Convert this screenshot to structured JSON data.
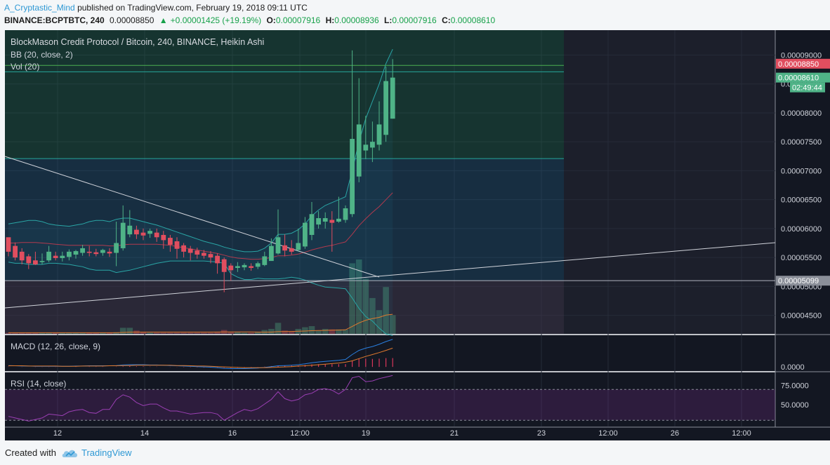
{
  "header": {
    "user": "A_Cryptastic_Mind",
    "published": "published on TradingView.com, February 19, 2018 09:11 UTC",
    "symbol": "BINANCE:BCPTBTC, 240",
    "price": "0.00008850",
    "change": "+0.00001425 (+19.19%)",
    "o_label": "O:",
    "o_val": "0.00007916",
    "h_label": "H:",
    "h_val": "0.00008936",
    "l_label": "L:",
    "l_val": "0.00007916",
    "c_label": "C:",
    "c_val": "0.00008610"
  },
  "chart_title": "BlockMason Credit Protocol / Bitcoin, 240, BINANCE, Heikin Ashi",
  "bb_label": "BB (20, close, 2)",
  "vol_label": "Vol (20)",
  "macd_label": "MACD (12, 26, close, 9)",
  "rsi_label": "RSI (14, close)",
  "footer": {
    "created": "Created with",
    "brand": "TradingView"
  },
  "colors": {
    "up": "#4fb387",
    "down": "#e04e5f",
    "bg": "#131722",
    "rsi_line": "#9b3fb4"
  },
  "chart_data": {
    "type": "candlestick",
    "price_axis": {
      "ticks": [
        "0.00009000",
        "0.00008500",
        "0.00008000",
        "0.00007500",
        "0.00007000",
        "0.00006500",
        "0.00006000",
        "0.00005500",
        "0.00005000",
        "0.00004500"
      ],
      "range": [
        4.18e-05,
        9.43e-05
      ]
    },
    "price_labels": [
      {
        "value": 8.85e-05,
        "text": "0.00008850",
        "color": "#e04e5f"
      },
      {
        "value": 8.61e-05,
        "text": "0.00008610",
        "color": "#4fb387"
      },
      {
        "value": 5.099e-05,
        "text": "0.00005099",
        "color": "#8b8f99"
      }
    ],
    "countdown": "02:49:44",
    "x_axis_ticks": [
      "12",
      "14",
      "16",
      "12:00",
      "19",
      "21",
      "23",
      "12:00",
      "26",
      "12:00"
    ],
    "candles": [
      [
        5.85e-05,
        5.75e-05,
        5.6e-05,
        5.52e-05
      ],
      [
        5.7e-05,
        5.76e-05,
        5.5e-05,
        5.45e-05
      ],
      [
        5.6e-05,
        5.66e-05,
        5.45e-05,
        5.38e-05
      ],
      [
        5.52e-05,
        5.56e-05,
        5.4e-05,
        5.3e-05
      ],
      [
        5.45e-05,
        5.6e-05,
        5.38e-05,
        5.37e-05
      ],
      [
        5.42e-05,
        5.57e-05,
        5.44e-05,
        5.38e-05
      ],
      [
        5.45e-05,
        5.7e-05,
        5.6e-05,
        5.42e-05
      ],
      [
        5.53e-05,
        5.6e-05,
        5.49e-05,
        5.45e-05
      ],
      [
        5.49e-05,
        5.6e-05,
        5.53e-05,
        5.43e-05
      ],
      [
        5.51e-05,
        5.64e-05,
        5.6e-05,
        5.45e-05
      ],
      [
        5.55e-05,
        5.63e-05,
        5.61e-05,
        5.48e-05
      ],
      [
        5.58e-05,
        5.72e-05,
        5.66e-05,
        5.53e-05
      ],
      [
        5.6e-05,
        5.7e-05,
        5.58e-05,
        5.52e-05
      ],
      [
        5.59e-05,
        5.65e-05,
        5.56e-05,
        5.52e-05
      ],
      [
        5.58e-05,
        5.65e-05,
        5.63e-05,
        5.53e-05
      ],
      [
        5.6e-05,
        5.66e-05,
        5.57e-05,
        5.51e-05
      ],
      [
        5.58e-05,
        6.12e-05,
        5.75e-05,
        5.35e-05
      ],
      [
        5.66e-05,
        6.4e-05,
        6.1e-05,
        5.62e-05
      ],
      [
        5.9e-05,
        6.32e-05,
        6.05e-05,
        5.85e-05
      ],
      [
        5.98e-05,
        6.05e-05,
        5.9e-05,
        5.82e-05
      ],
      [
        5.93e-05,
        6e-05,
        5.88e-05,
        5.8e-05
      ],
      [
        5.91e-05,
        6e-05,
        5.96e-05,
        5.84e-05
      ],
      [
        5.93e-05,
        6e-05,
        5.85e-05,
        5.77e-05
      ],
      [
        5.89e-05,
        5.96e-05,
        5.8e-05,
        5.65e-05
      ],
      [
        5.84e-05,
        5.89e-05,
        5.72e-05,
        5.6e-05
      ],
      [
        5.78e-05,
        5.85e-05,
        5.65e-05,
        5.48e-05
      ],
      [
        5.71e-05,
        5.75e-05,
        5.6e-05,
        5.5e-05
      ],
      [
        5.65e-05,
        5.7e-05,
        5.58e-05,
        5.45e-05
      ],
      [
        5.62e-05,
        5.67e-05,
        5.55e-05,
        5.48e-05
      ],
      [
        5.58e-05,
        5.63e-05,
        5.53e-05,
        5.48e-05
      ],
      [
        5.56e-05,
        5.61e-05,
        5.5e-05,
        5.4e-05
      ],
      [
        5.53e-05,
        5.57e-05,
        5.4e-05,
        5.22e-05
      ],
      [
        5.47e-05,
        5.5e-05,
        5.25e-05,
        4.9e-05
      ],
      [
        5.36e-05,
        5.4e-05,
        5.28e-05,
        5.1e-05
      ],
      [
        5.32e-05,
        5.42e-05,
        5.35e-05,
        5.25e-05
      ],
      [
        5.33e-05,
        5.4e-05,
        5.37e-05,
        5.28e-05
      ],
      [
        5.35e-05,
        5.4e-05,
        5.32e-05,
        5.27e-05
      ],
      [
        5.34e-05,
        5.43e-05,
        5.4e-05,
        5.3e-05
      ],
      [
        5.37e-05,
        5.6e-05,
        5.52e-05,
        5.35e-05
      ],
      [
        5.44e-05,
        5.83e-05,
        5.7e-05,
        5.45e-05
      ],
      [
        5.57e-05,
        6.33e-05,
        5.85e-05,
        5.55e-05
      ],
      [
        5.71e-05,
        5.9e-05,
        5.62e-05,
        5.52e-05
      ],
      [
        5.66e-05,
        5.8e-05,
        5.6e-05,
        5.55e-05
      ],
      [
        5.63e-05,
        6e-05,
        5.75e-05,
        5.6e-05
      ],
      [
        5.69e-05,
        6.2e-05,
        6.1e-05,
        5.65e-05
      ],
      [
        5.89e-05,
        6.46e-05,
        6.25e-05,
        5.8e-05
      ],
      [
        6.07e-05,
        6.3e-05,
        6.18e-05,
        6e-05
      ],
      [
        6.12e-05,
        6.28e-05,
        6.18e-05,
        6e-05
      ],
      [
        6.15e-05,
        6.3e-05,
        6.1e-05,
        5.6e-05
      ],
      [
        6.12e-05,
        6.55e-05,
        6.17e-05,
        6.1e-05
      ],
      [
        6.15e-05,
        6.4e-05,
        6.35e-05,
        6.1e-05
      ],
      [
        6.25e-05,
        9.08e-05,
        7.55e-05,
        6.2e-05
      ],
      [
        6.9e-05,
        8.6e-05,
        7.8e-05,
        6.8e-05
      ],
      [
        7.35e-05,
        7.95e-05,
        7.45e-05,
        7.2e-05
      ],
      [
        7.4e-05,
        7.85e-05,
        7.5e-05,
        7.15e-05
      ],
      [
        7.45e-05,
        8.2e-05,
        7.8e-05,
        7.35e-05
      ],
      [
        7.62e-05,
        8.8e-05,
        8.55e-05,
        7.5e-05
      ],
      [
        7.9e-05,
        8.93e-05,
        8.61e-05,
        7.9e-05
      ]
    ],
    "bb_upper": [
      6.08e-05,
      6.1e-05,
      6.12e-05,
      6.14e-05,
      6.14e-05,
      6.12e-05,
      6.08e-05,
      6.06e-05,
      6.05e-05,
      6.04e-05,
      6.06e-05,
      6.08e-05,
      6.12e-05,
      6.14e-05,
      6.14e-05,
      6.12e-05,
      6.16e-05,
      6.18e-05,
      6.18e-05,
      6.15e-05,
      6.12e-05,
      6.09e-05,
      6.06e-05,
      6.02e-05,
      5.98e-05,
      5.94e-05,
      5.9e-05,
      5.86e-05,
      5.82e-05,
      5.78e-05,
      5.75e-05,
      5.72e-05,
      5.68e-05,
      5.65e-05,
      5.62e-05,
      5.6e-05,
      5.6e-05,
      5.61e-05,
      5.66e-05,
      5.75e-05,
      5.9e-05,
      5.9e-05,
      5.92e-05,
      5.98e-05,
      6.08e-05,
      6.22e-05,
      6.32e-05,
      6.4e-05,
      6.45e-05,
      6.5e-05,
      6.55e-05,
      7e-05,
      7.5e-05,
      7.9e-05,
      8.2e-05,
      8.5e-05,
      8.85e-05,
      9.1e-05
    ],
    "bb_basis": [
      5.75e-05,
      5.75e-05,
      5.76e-05,
      5.76e-05,
      5.76e-05,
      5.75e-05,
      5.74e-05,
      5.73e-05,
      5.72e-05,
      5.71e-05,
      5.71e-05,
      5.71e-05,
      5.71e-05,
      5.71e-05,
      5.71e-05,
      5.7e-05,
      5.7e-05,
      5.72e-05,
      5.73e-05,
      5.73e-05,
      5.73e-05,
      5.73e-05,
      5.73e-05,
      5.72e-05,
      5.71e-05,
      5.69e-05,
      5.67e-05,
      5.65e-05,
      5.63e-05,
      5.61e-05,
      5.59e-05,
      5.57e-05,
      5.54e-05,
      5.51e-05,
      5.49e-05,
      5.48e-05,
      5.47e-05,
      5.47e-05,
      5.48e-05,
      5.5e-05,
      5.53e-05,
      5.53e-05,
      5.54e-05,
      5.56e-05,
      5.59e-05,
      5.63e-05,
      5.66e-05,
      5.69e-05,
      5.71e-05,
      5.74e-05,
      5.77e-05,
      5.9e-05,
      6.05e-05,
      6.17e-05,
      6.28e-05,
      6.38e-05,
      6.5e-05,
      6.62e-05
    ],
    "bb_lower": [
      5.42e-05,
      5.4e-05,
      5.4e-05,
      5.38e-05,
      5.38e-05,
      5.38e-05,
      5.4e-05,
      5.4e-05,
      5.39e-05,
      5.38e-05,
      5.36e-05,
      5.34e-05,
      5.3e-05,
      5.28e-05,
      5.28e-05,
      5.28e-05,
      5.24e-05,
      5.26e-05,
      5.28e-05,
      5.31e-05,
      5.34e-05,
      5.37e-05,
      5.4e-05,
      5.42e-05,
      5.44e-05,
      5.44e-05,
      5.44e-05,
      5.44e-05,
      5.44e-05,
      5.44e-05,
      5.43e-05,
      5.42e-05,
      5.4e-05,
      5.22e-05,
      5.16e-05,
      5.12e-05,
      5.12e-05,
      5.14e-05,
      5.13e-05,
      5.13e-05,
      5.13e-05,
      5.14e-05,
      5.16e-05,
      5.14e-05,
      5.11e-05,
      5.06e-05,
      5.02e-05,
      4.99e-05,
      4.98e-05,
      4.97e-05,
      4.96e-05,
      4.8e-05,
      4.62e-05,
      4.48e-05,
      4.4e-05,
      4.28e-05,
      4.18e-05,
      4.15e-05
    ],
    "volume": [
      2,
      2,
      2,
      2,
      2,
      2,
      2,
      2,
      2,
      2,
      2,
      2,
      2,
      2,
      2,
      2,
      3,
      11,
      11,
      6,
      3,
      2,
      2,
      2,
      2,
      2,
      2,
      2,
      2,
      2,
      2,
      3,
      7,
      3,
      3,
      2,
      2,
      4,
      7,
      9,
      20,
      6,
      4,
      9,
      12,
      14,
      6,
      9,
      8,
      8,
      8,
      128,
      135,
      100,
      65,
      43,
      85,
      34
    ],
    "vol_scale_max": 140,
    "macd": [
      5e-07,
      4e-07,
      3e-07,
      3e-07,
      2e-07,
      2e-07,
      2e-07,
      2e-07,
      2e-07,
      2e-07,
      3e-07,
      3e-07,
      4e-07,
      4e-07,
      4e-07,
      4e-07,
      5e-07,
      7e-07,
      8e-07,
      8e-07,
      8e-07,
      7e-07,
      7e-07,
      6e-07,
      5e-07,
      4e-07,
      3e-07,
      2e-07,
      1e-07,
      0.0,
      -1e-07,
      -3e-07,
      -5e-07,
      -6e-07,
      -6e-07,
      -6e-07,
      -5e-07,
      -4e-07,
      -2e-07,
      1e-07,
      4e-07,
      5e-07,
      6e-07,
      8e-07,
      1.1e-06,
      1.5e-06,
      1.8e-06,
      2e-06,
      2.2e-06,
      2.4e-06,
      2.7e-06,
      4.5e-06,
      6e-06,
      6.8e-06,
      7.4e-06,
      8.2e-06,
      9.2e-06,
      1e-05
    ],
    "macd_signal": [
      4e-07,
      4e-07,
      4e-07,
      3e-07,
      3e-07,
      3e-07,
      3e-07,
      3e-07,
      2e-07,
      2e-07,
      2e-07,
      3e-07,
      3e-07,
      3e-07,
      3e-07,
      4e-07,
      4e-07,
      5e-07,
      5e-07,
      6e-07,
      6e-07,
      6e-07,
      6e-07,
      6e-07,
      6e-07,
      5e-07,
      5e-07,
      4e-07,
      3e-07,
      3e-07,
      2e-07,
      1e-07,
      0.0,
      -1e-07,
      -2e-07,
      -3e-07,
      -3e-07,
      -3e-07,
      -3e-07,
      -2e-07,
      -1e-07,
      0.0,
      1e-07,
      3e-07,
      4e-07,
      6e-07,
      8e-07,
      1e-06,
      1.2e-06,
      1.4e-06,
      1.7e-06,
      2.2e-06,
      3e-06,
      3.8e-06,
      4.5e-06,
      5.2e-06,
      6e-06,
      6.8e-06
    ],
    "macd_range": [
      -1.5e-06,
      1.15e-05
    ],
    "rsi": [
      35,
      33,
      31,
      29,
      31,
      33,
      38,
      37,
      36,
      41,
      43,
      44,
      40,
      39,
      44,
      44,
      57,
      63,
      60,
      53,
      49,
      51,
      51,
      46,
      42,
      42,
      40,
      38,
      39,
      40,
      40,
      38,
      30,
      35,
      40,
      44,
      42,
      45,
      51,
      57,
      67,
      58,
      55,
      57,
      63,
      65,
      70,
      71,
      69,
      64,
      70,
      85,
      87,
      80,
      81,
      84,
      86,
      88
    ],
    "rsi_range": [
      22,
      92
    ],
    "rsi_levels": [
      {
        "value": 75,
        "text": "75.0000"
      },
      {
        "value": 50,
        "text": "50.0000"
      }
    ],
    "rsi_band": [
      30,
      70
    ],
    "drawings": {
      "resistance": 7.21e-05,
      "support": 5.1e-05
    }
  }
}
